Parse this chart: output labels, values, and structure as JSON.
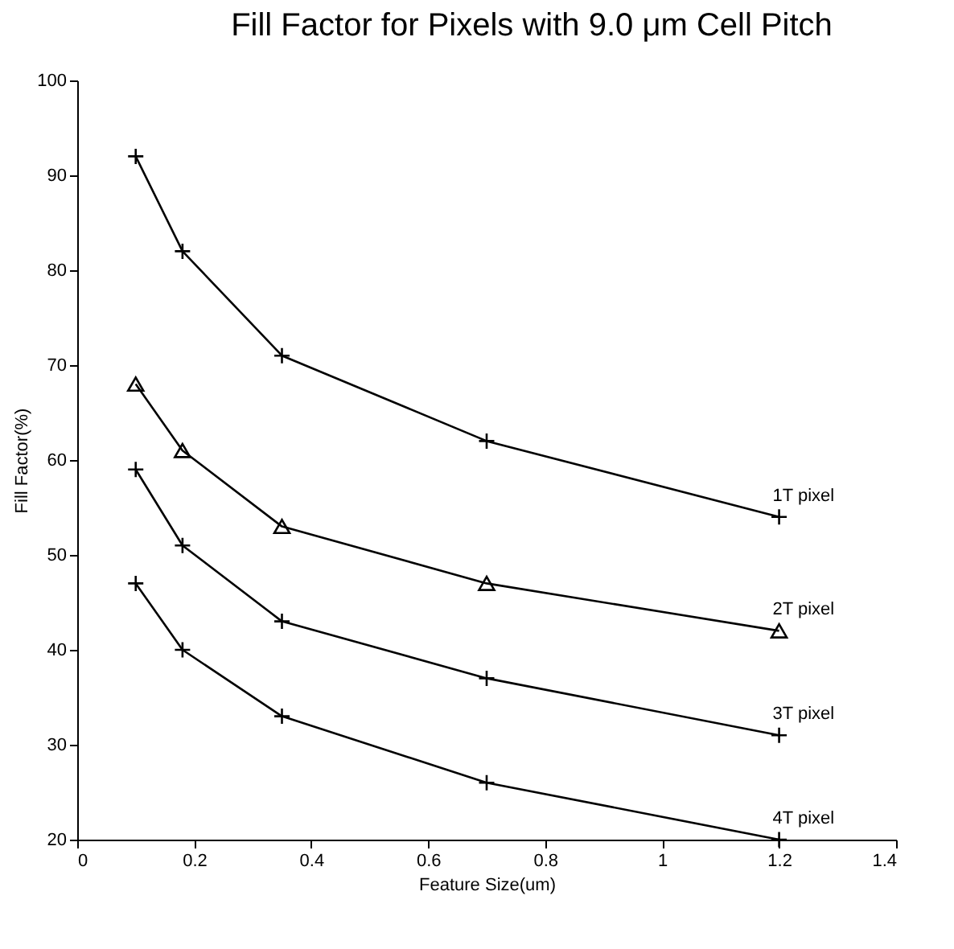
{
  "chart_data": {
    "type": "line",
    "title": "Fill Factor for Pixels with 9.0 μm Cell Pitch",
    "xlabel": "Feature Size(um)",
    "ylabel": "Fill Factor(%)",
    "x": [
      0.1,
      0.18,
      0.35,
      0.7,
      1.2
    ],
    "series": [
      {
        "name": "1T pixel",
        "color": "#000000",
        "marker": "cross",
        "values": [
          92,
          82,
          71,
          62,
          54
        ]
      },
      {
        "name": "2T pixel",
        "color": "#000000",
        "marker": "triangle",
        "values": [
          68,
          61,
          53,
          47,
          42
        ]
      },
      {
        "name": "3T pixel",
        "color": "#000000",
        "marker": "cross",
        "values": [
          59,
          51,
          43,
          37,
          31
        ]
      },
      {
        "name": "4T pixel",
        "color": "#000000",
        "marker": "cross",
        "values": [
          47,
          40,
          33,
          26,
          20
        ]
      }
    ],
    "xlim": [
      0,
      1.4
    ],
    "xticks": [
      0,
      0.2,
      0.4,
      0.6,
      0.8,
      1,
      1.2,
      1.4
    ],
    "ylim": [
      20,
      100
    ],
    "yticks": [
      20,
      30,
      40,
      50,
      60,
      70,
      80,
      90,
      100
    ]
  }
}
